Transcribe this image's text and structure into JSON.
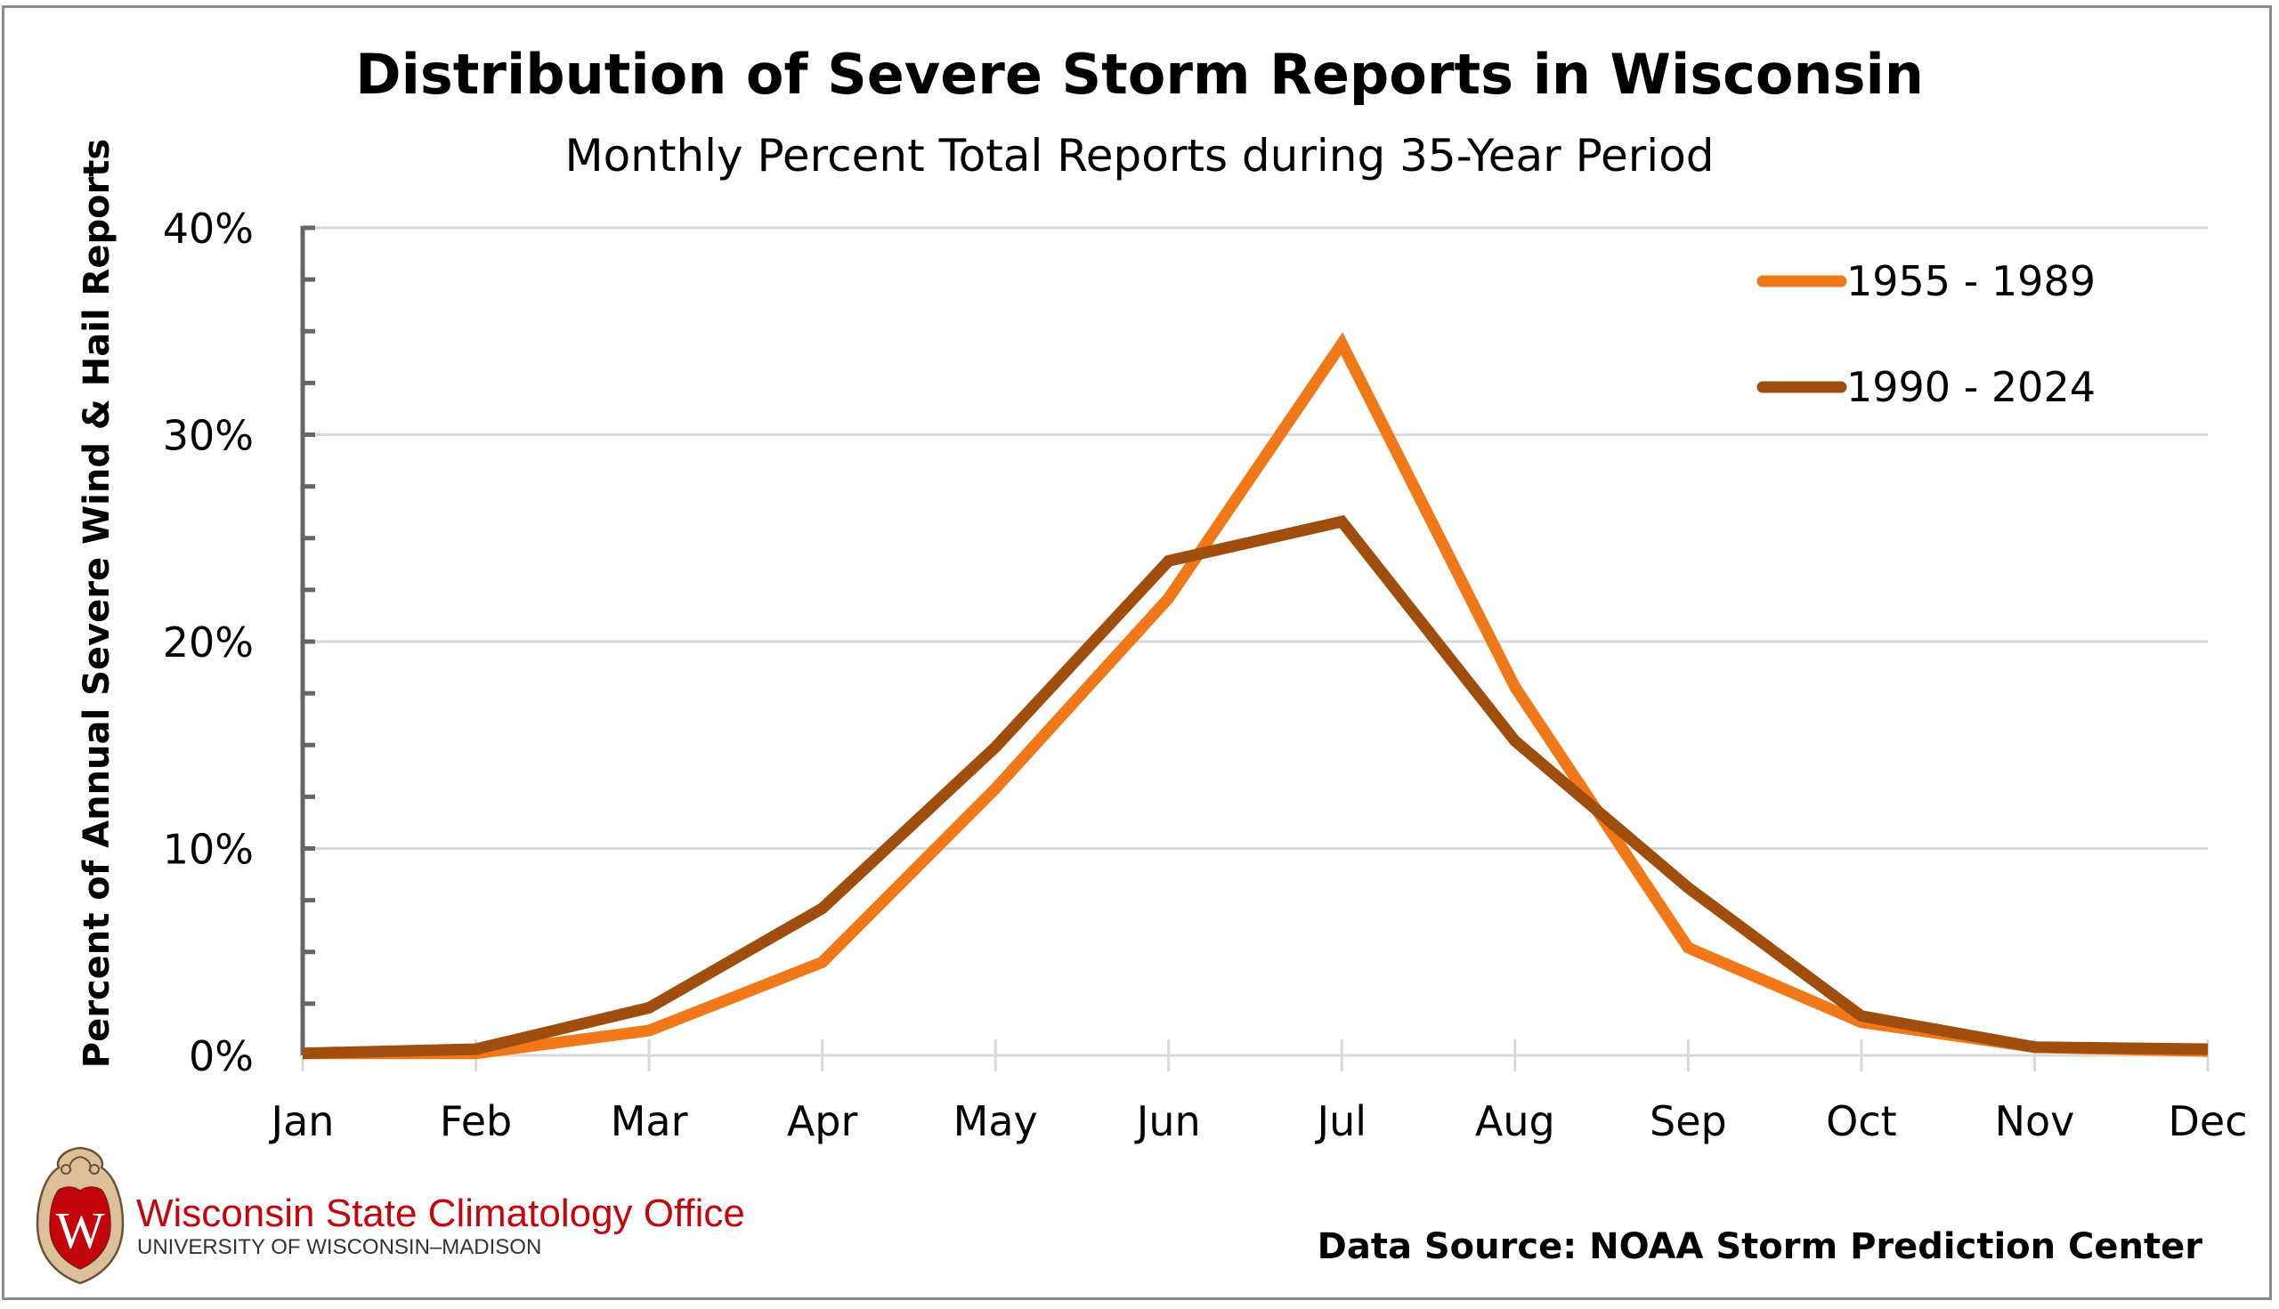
{
  "chart_data": {
    "type": "line",
    "title": "Distribution of Severe Storm Reports in Wisconsin",
    "subtitle": "Monthly Percent Total Reports during 35-Year Period",
    "xlabel": "",
    "ylabel": "Percent of Annual Severe Wind & Hail Reports",
    "categories": [
      "Jan",
      "Feb",
      "Mar",
      "Apr",
      "May",
      "Jun",
      "Jul",
      "Aug",
      "Sep",
      "Oct",
      "Nov",
      "Dec"
    ],
    "ylim": [
      0,
      40
    ],
    "yticks": [
      0,
      10,
      20,
      30,
      40
    ],
    "ytick_labels": [
      "0%",
      "10%",
      "20%",
      "30%",
      "40%"
    ],
    "y_minor_step": 2.5,
    "grid": "horizontal major gridlines",
    "legend_position": "top-right",
    "series": [
      {
        "name": "1955 - 1989",
        "color": "#f07818",
        "values": [
          0.1,
          0.1,
          1.2,
          4.5,
          12.9,
          22.1,
          34.4,
          17.8,
          5.2,
          1.6,
          0.4,
          0.2
        ]
      },
      {
        "name": "1990 - 2024",
        "color": "#a04e0e",
        "values": [
          0.1,
          0.3,
          2.3,
          7.1,
          14.9,
          23.9,
          25.8,
          15.2,
          8.1,
          1.9,
          0.4,
          0.3
        ]
      }
    ]
  },
  "footer": {
    "org_name": "Wisconsin State Climatology Office",
    "org_sub": "UNIVERSITY OF WISCONSIN–MADISON",
    "logo_letter": "W",
    "source": "Data Source: NOAA Storm Prediction Center"
  },
  "colors": {
    "axis": "#666666",
    "grid": "#d9d9d9",
    "brand_red": "#c5050c",
    "crest_tan": "#d9b98c"
  }
}
